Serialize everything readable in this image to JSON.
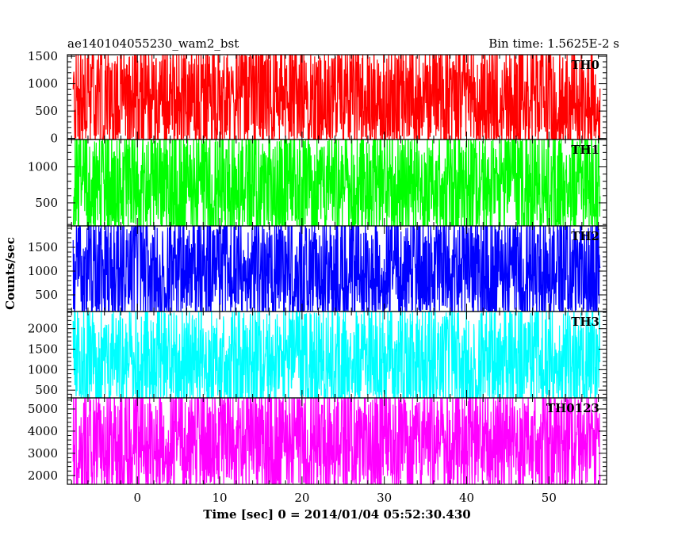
{
  "chart_data": {
    "type": "line",
    "title_left": "ae140104055230_wam2_bst",
    "title_right": "Bin time: 1.5625E-2 s",
    "xlabel": "Time [sec] 0 = 2014/01/04 05:52:30.430",
    "ylabel": "Counts/sec",
    "xlim": [
      -8.5,
      57
    ],
    "x_ticks": [
      0,
      10,
      20,
      30,
      40,
      50
    ],
    "data_x_range": [
      -7.8,
      56.2
    ],
    "grid": false,
    "panels": [
      {
        "name": "TH0",
        "color": "#ff0000",
        "ylim": [
          -20,
          1530
        ],
        "y_ticks": [
          0,
          500,
          1000,
          1500
        ],
        "approx_mean": 700,
        "approx_low": 50,
        "approx_high": 1500
      },
      {
        "name": "TH1",
        "color": "#00ff00",
        "ylim": [
          180,
          1380
        ],
        "y_ticks": [
          500,
          1000
        ],
        "approx_mean": 720,
        "approx_low": 200,
        "approx_high": 1350
      },
      {
        "name": "TH2",
        "color": "#0000ff",
        "ylim": [
          150,
          1950
        ],
        "y_ticks": [
          500,
          1000,
          1500
        ],
        "approx_mean": 1000,
        "approx_low": 200,
        "approx_high": 1900
      },
      {
        "name": "TH3",
        "color": "#00ffff",
        "ylim": [
          310,
          2420
        ],
        "y_ticks": [
          500,
          1000,
          1500,
          2000
        ],
        "approx_mean": 1150,
        "approx_low": 400,
        "approx_high": 2350
      },
      {
        "name": "TH0123",
        "color": "#ff00ff",
        "ylim": [
          1600,
          5500
        ],
        "y_ticks": [
          2000,
          3000,
          4000,
          5000
        ],
        "approx_mean": 3500,
        "approx_low": 1700,
        "approx_high": 5400
      }
    ]
  }
}
